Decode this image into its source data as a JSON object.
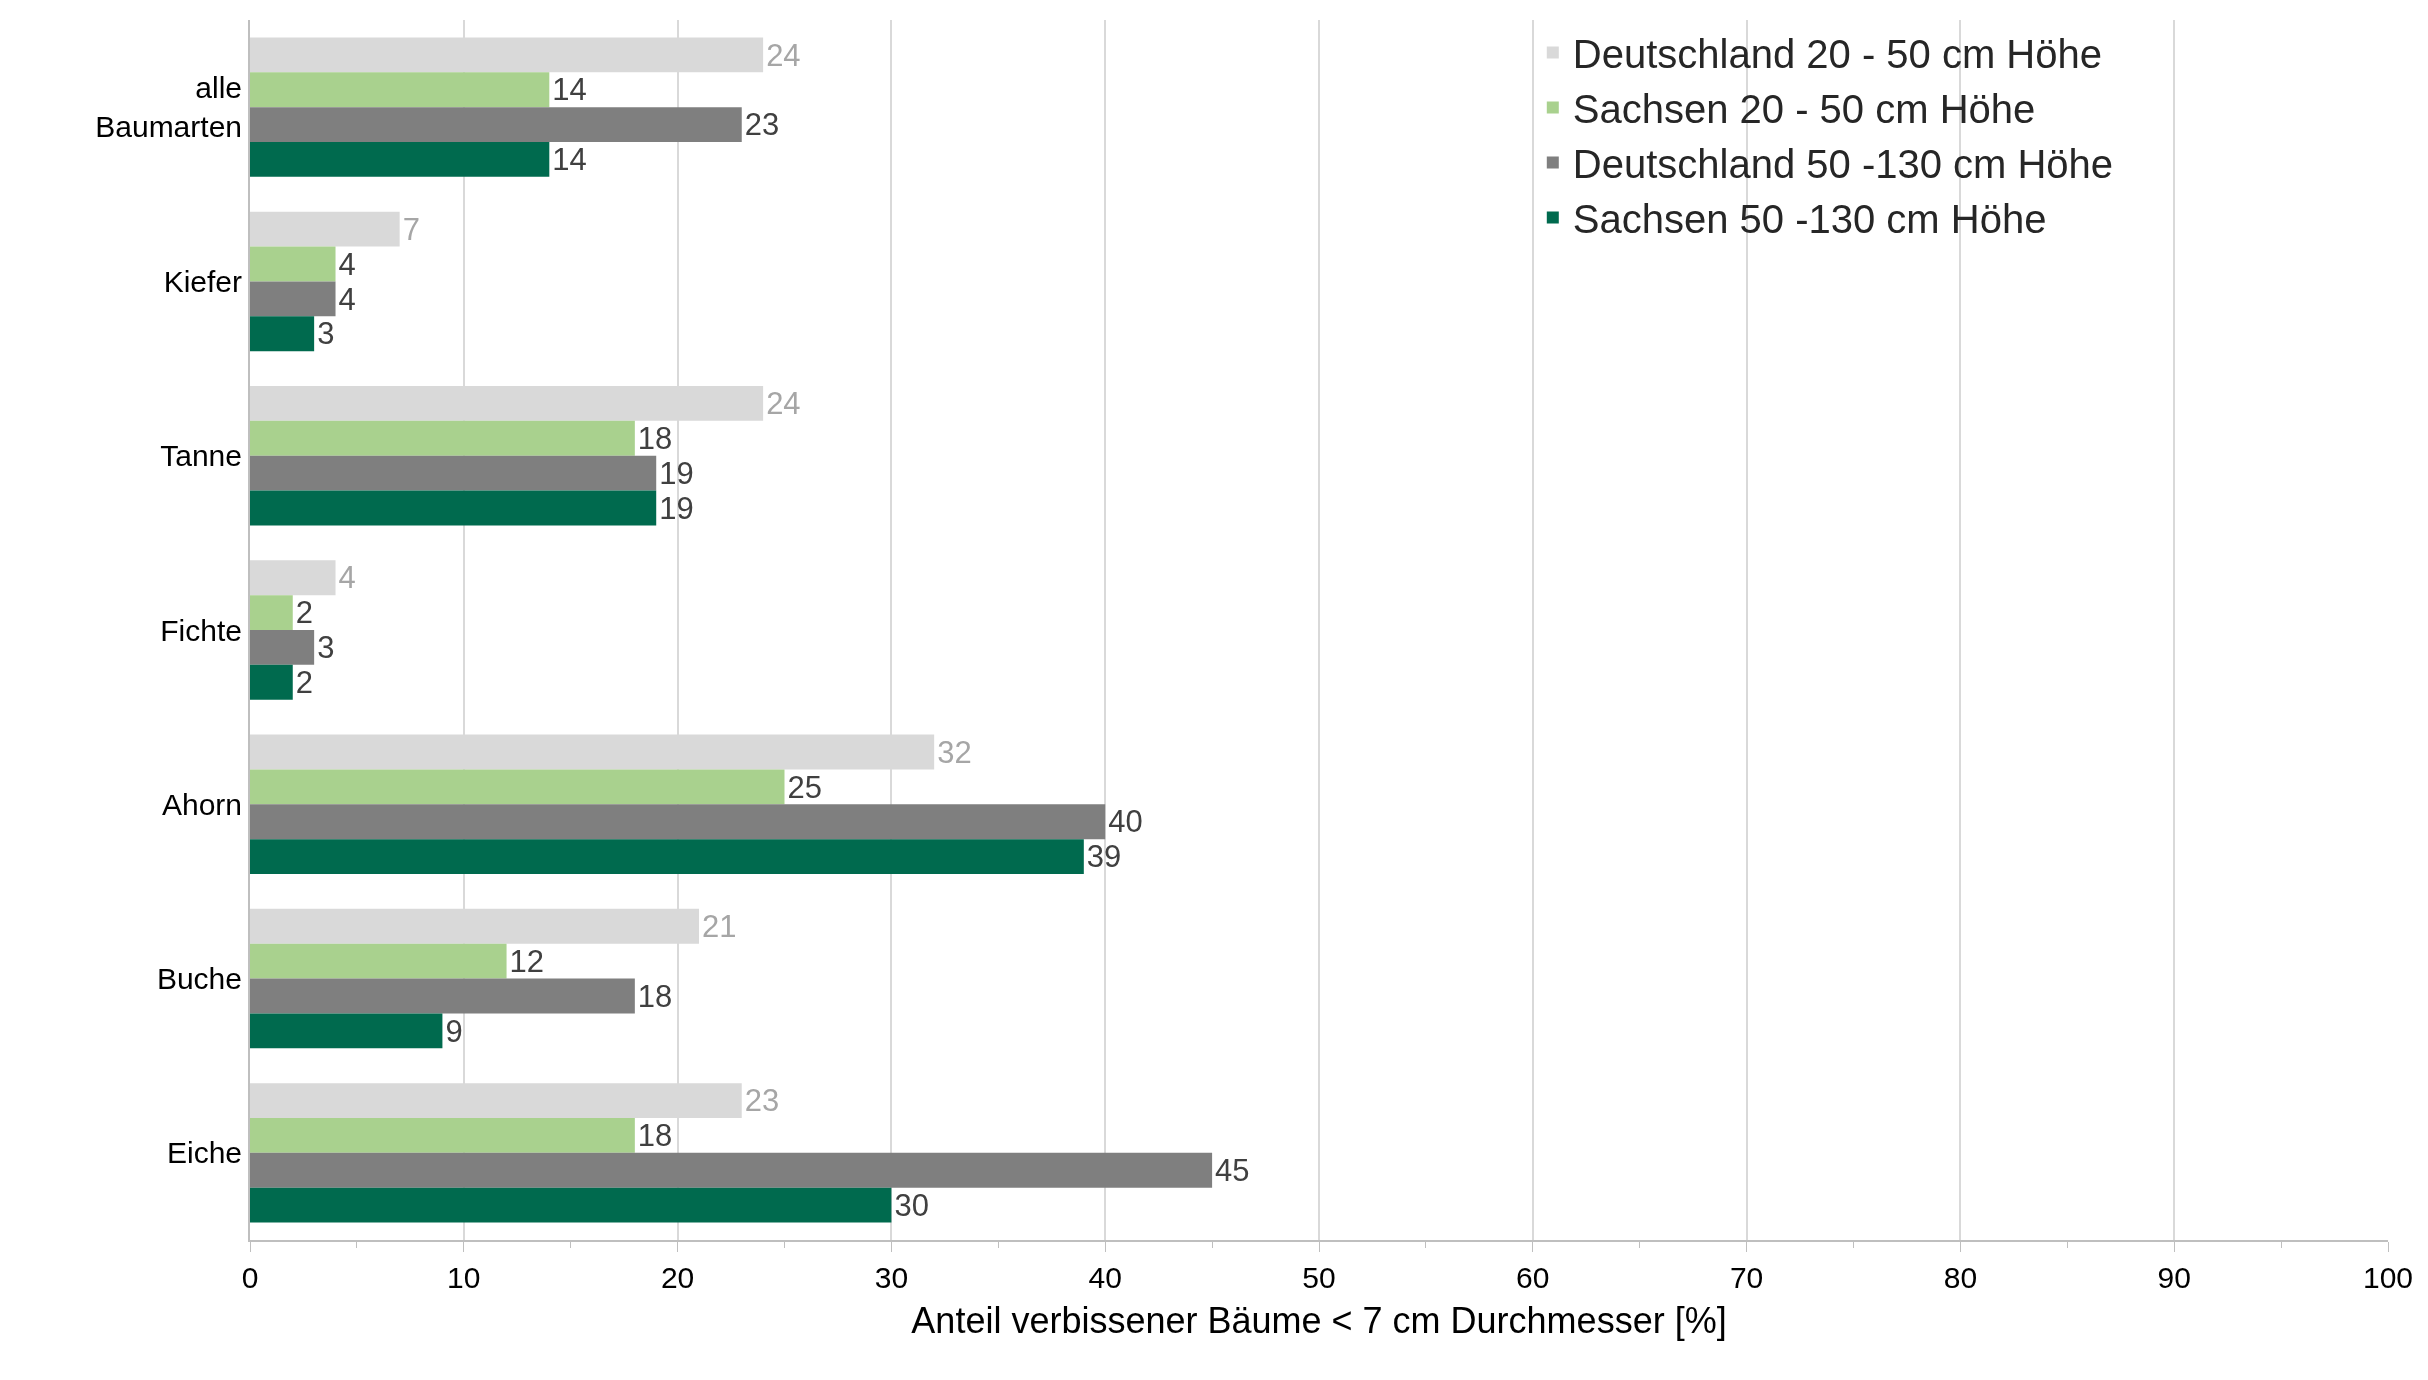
{
  "chart_data": {
    "type": "bar",
    "orientation": "horizontal",
    "xlabel": "Anteil verbissener Bäume < 7 cm Durchmesser [%]",
    "categories": [
      "alle\nBaumarten",
      "Kiefer",
      "Tanne",
      "Fichte",
      "Ahorn",
      "Buche",
      "Eiche"
    ],
    "series": [
      {
        "name": "Deutschland 20 - 50 cm Höhe",
        "color": "#d9d9d9",
        "values": [
          24,
          7,
          24,
          4,
          32,
          21,
          23
        ]
      },
      {
        "name": "Sachsen 20 - 50 cm Höhe",
        "color": "#a9d18e",
        "values": [
          14,
          4,
          18,
          2,
          25,
          12,
          18
        ]
      },
      {
        "name": "Deutschland 50 -130 cm Höhe",
        "color": "#7f7f7f",
        "values": [
          23,
          4,
          19,
          3,
          40,
          18,
          45
        ]
      },
      {
        "name": "Sachsen 50 -130 cm Höhe",
        "color": "#006a4e",
        "values": [
          14,
          3,
          19,
          2,
          39,
          9,
          30
        ]
      }
    ],
    "xlim": [
      0,
      100
    ],
    "xticks": [
      0,
      10,
      20,
      30,
      40,
      50,
      60,
      70,
      80,
      90,
      100
    ],
    "grid": "x",
    "legend": "top right",
    "data_labels": true
  }
}
